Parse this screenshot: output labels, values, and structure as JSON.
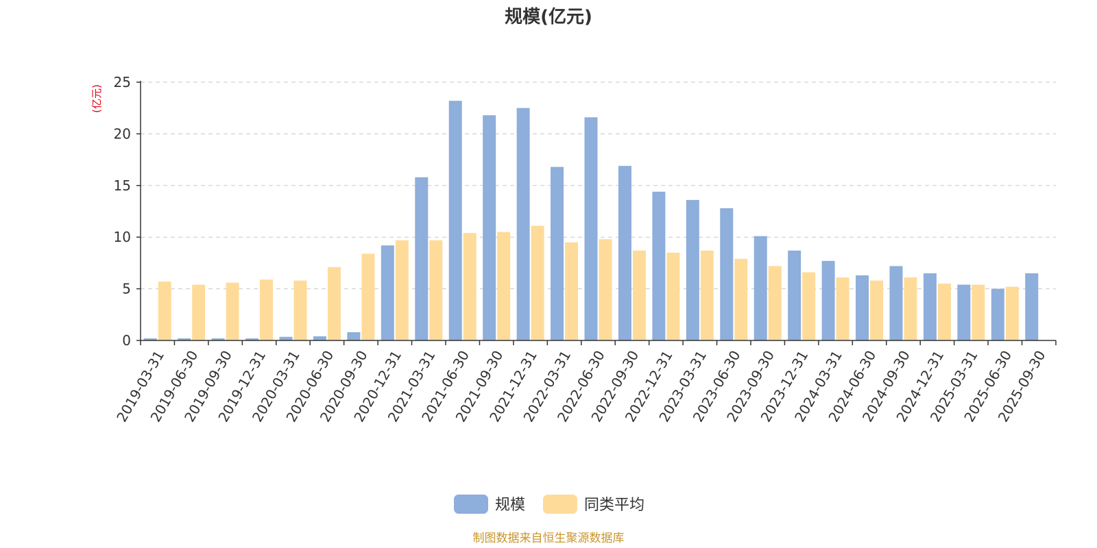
{
  "chart_data": {
    "type": "bar",
    "title": "规模(亿元)",
    "ylabel": "(亿元)",
    "xlabel": "",
    "ylim": [
      0,
      25
    ],
    "yticks": [
      0,
      5,
      10,
      15,
      20,
      25
    ],
    "grid": true,
    "legend_position": "bottom",
    "categories": [
      "2019-03-31",
      "2019-06-30",
      "2019-09-30",
      "2019-12-31",
      "2020-03-31",
      "2020-06-30",
      "2020-09-30",
      "2020-12-31",
      "2021-03-31",
      "2021-06-30",
      "2021-09-30",
      "2021-12-31",
      "2022-03-31",
      "2022-06-30",
      "2022-09-30",
      "2022-12-31",
      "2023-03-31",
      "2023-06-30",
      "2023-09-30",
      "2023-12-31",
      "2024-03-31",
      "2024-06-30",
      "2024-09-30",
      "2024-12-31",
      "2025-03-31",
      "2025-06-30",
      "2025-09-30"
    ],
    "series": [
      {
        "name": "规模",
        "color": "#8eaedb",
        "values": [
          0.2,
          0.2,
          0.2,
          0.2,
          0.35,
          0.4,
          0.8,
          9.2,
          15.8,
          23.2,
          21.8,
          22.5,
          16.8,
          21.6,
          16.9,
          14.4,
          13.6,
          12.8,
          10.1,
          8.7,
          7.7,
          6.3,
          7.2,
          6.5,
          5.4,
          5.0,
          6.5
        ]
      },
      {
        "name": "同类平均",
        "color": "#ffdb9a",
        "values": [
          5.7,
          5.4,
          5.6,
          5.9,
          5.8,
          7.1,
          8.4,
          9.7,
          9.7,
          10.4,
          10.5,
          11.1,
          9.5,
          9.8,
          8.7,
          8.5,
          8.7,
          7.9,
          7.2,
          6.6,
          6.1,
          5.8,
          6.1,
          5.5,
          5.4,
          5.2,
          null
        ]
      }
    ]
  },
  "footer": {
    "source": "制图数据来自恒生聚源数据库"
  }
}
